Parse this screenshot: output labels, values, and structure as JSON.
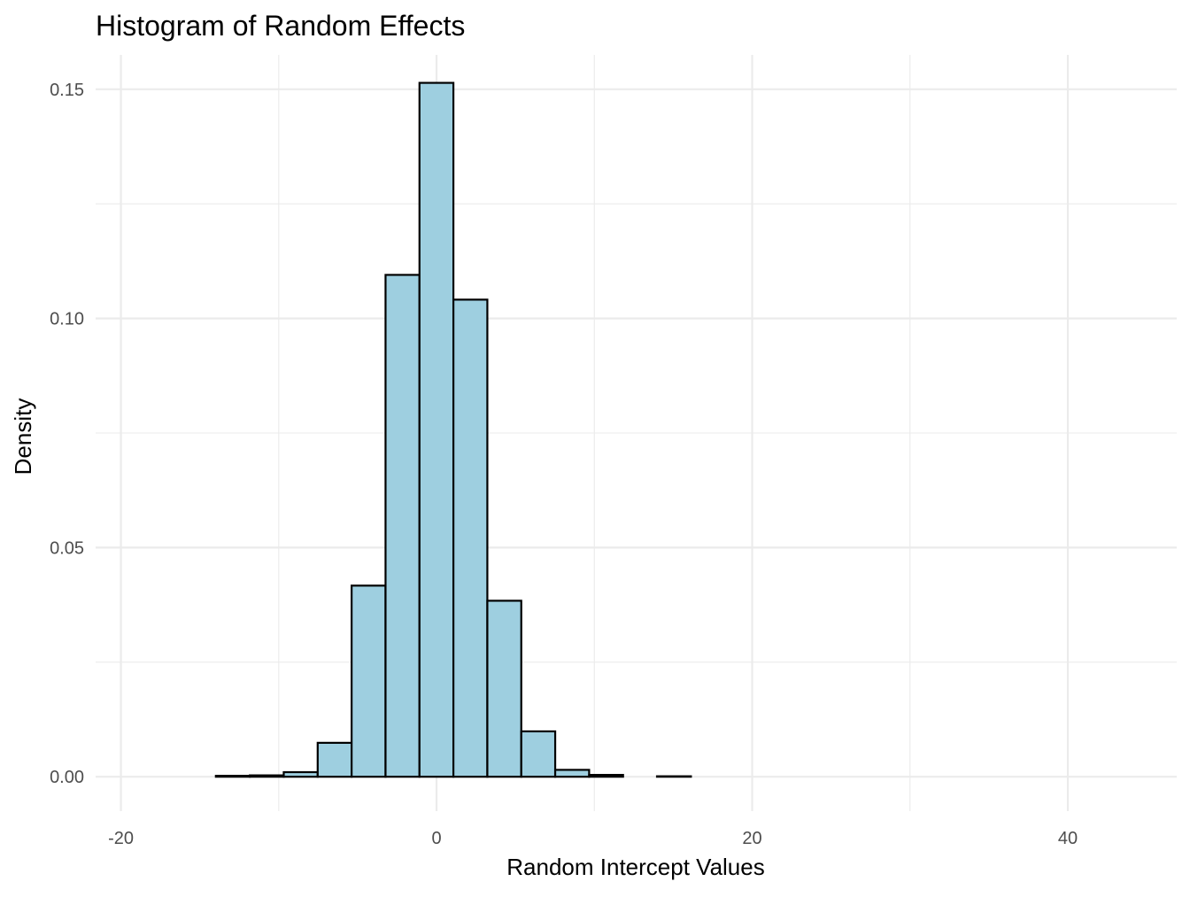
{
  "chart_data": {
    "type": "bar",
    "title": "Histogram of Random Effects",
    "xlabel": "Random Intercept Values",
    "ylabel": "Density",
    "xlim": [
      -21.6,
      46.9
    ],
    "ylim": [
      -0.0075,
      0.1575
    ],
    "x_ticks": [
      -20,
      0,
      20,
      40
    ],
    "x_tick_labels": [
      "-20",
      "0",
      "20",
      "40"
    ],
    "y_ticks": [
      0,
      0.05,
      0.1,
      0.15
    ],
    "y_tick_labels": [
      "0.00",
      "0.05",
      "0.10",
      "0.15"
    ],
    "x_minor": [
      -10,
      10,
      30
    ],
    "y_minor": [
      0.025,
      0.075,
      0.125
    ],
    "grid": true,
    "fill_color": "#9ecfe0",
    "edge_color": "#000000",
    "bin_width": 2.15,
    "bins": [
      {
        "x0": -20.43,
        "value": 0.0
      },
      {
        "x0": -18.28,
        "value": 0.0
      },
      {
        "x0": -16.13,
        "value": 0.0
      },
      {
        "x0": -13.98,
        "value": 0.0002
      },
      {
        "x0": -11.83,
        "value": 0.0003
      },
      {
        "x0": -9.68,
        "value": 0.001
      },
      {
        "x0": -7.53,
        "value": 0.0074
      },
      {
        "x0": -5.38,
        "value": 0.0417
      },
      {
        "x0": -3.23,
        "value": 0.1095
      },
      {
        "x0": -1.08,
        "value": 0.1514
      },
      {
        "x0": 1.07,
        "value": 0.1041
      },
      {
        "x0": 3.22,
        "value": 0.0384
      },
      {
        "x0": 5.37,
        "value": 0.0099
      },
      {
        "x0": 7.52,
        "value": 0.0015
      },
      {
        "x0": 9.67,
        "value": 0.0004
      },
      {
        "x0": 11.82,
        "value": 0.0
      },
      {
        "x0": 13.97,
        "value": 0.0001
      },
      {
        "x0": 16.12,
        "value": 0.0
      },
      {
        "x0": 18.27,
        "value": 0.0
      },
      {
        "x0": 20.42,
        "value": 0.0
      },
      {
        "x0": 22.57,
        "value": 0.0
      },
      {
        "x0": 24.72,
        "value": 0.0
      },
      {
        "x0": 26.87,
        "value": 0.0
      },
      {
        "x0": 29.02,
        "value": 0.0
      },
      {
        "x0": 31.17,
        "value": 0.0
      },
      {
        "x0": 33.32,
        "value": 0.0
      },
      {
        "x0": 35.47,
        "value": 0.0
      },
      {
        "x0": 37.62,
        "value": 0.0
      },
      {
        "x0": 39.77,
        "value": 0.0
      },
      {
        "x0": 41.92,
        "value": 0.0
      }
    ]
  }
}
